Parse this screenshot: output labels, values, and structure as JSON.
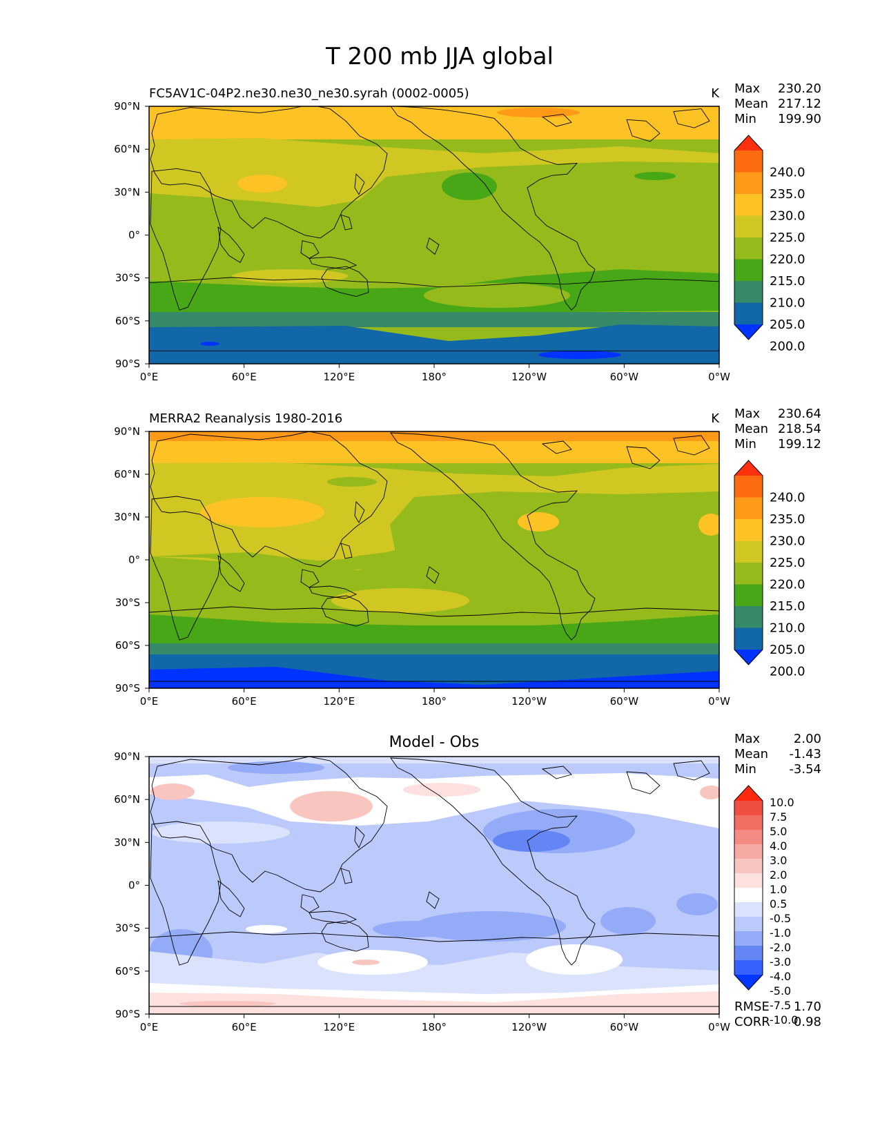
{
  "figure_title": "T 200 mb JJA global",
  "colors": {
    "levels_main": [
      "#0033ff",
      "#1167a8",
      "#368a6a",
      "#48a717",
      "#95ba1c",
      "#d0c723",
      "#fdc325",
      "#fe9a18",
      "#fd6b11",
      "#ff300e"
    ],
    "levels_diff": [
      "#0037ff",
      "#3461ff",
      "#6386f4",
      "#94abf8",
      "#bcc9fb",
      "#dbe2fc",
      "#ffffff",
      "#fde1df",
      "#f9c5c0",
      "#f7a9a3",
      "#f58c84",
      "#f26d63",
      "#ef4f3f",
      "#ff2a0e"
    ],
    "coastline": "#000000"
  },
  "chart_data": [
    {
      "type": "heatmap",
      "title": "FC5AV1C-04P2.ne30.ne30_ne30.syrah (0002-0005)",
      "units": "K",
      "stats": [
        {
          "label": "Max",
          "value": "230.20"
        },
        {
          "label": "Mean",
          "value": "217.12"
        },
        {
          "label": "Min",
          "value": "199.90"
        }
      ],
      "x_ticks": [
        "0°E",
        "60°E",
        "120°E",
        "180°",
        "120°W",
        "60°W",
        "0°W"
      ],
      "y_ticks": [
        "90°N",
        "60°N",
        "30°N",
        "0°",
        "30°S",
        "60°S",
        "90°S"
      ],
      "xlim": [
        0,
        360
      ],
      "ylim": [
        -90,
        90
      ],
      "colorbar": {
        "labels": [
          "240.0",
          "235.0",
          "230.0",
          "225.0",
          "220.0",
          "215.0",
          "210.0",
          "205.0",
          "200.0"
        ],
        "levels": [
          200,
          205,
          210,
          215,
          220,
          225,
          230,
          235,
          240
        ]
      }
    },
    {
      "type": "heatmap",
      "title": "MERRA2 Reanalysis 1980-2016",
      "units": "K",
      "stats": [
        {
          "label": "Max",
          "value": "230.64"
        },
        {
          "label": "Mean",
          "value": "218.54"
        },
        {
          "label": "Min",
          "value": "199.12"
        }
      ],
      "x_ticks": [
        "0°E",
        "60°E",
        "120°E",
        "180°",
        "120°W",
        "60°W",
        "0°W"
      ],
      "y_ticks": [
        "90°N",
        "60°N",
        "30°N",
        "0°",
        "30°S",
        "60°S",
        "90°S"
      ],
      "xlim": [
        0,
        360
      ],
      "ylim": [
        -90,
        90
      ],
      "colorbar": {
        "labels": [
          "240.0",
          "235.0",
          "230.0",
          "225.0",
          "220.0",
          "215.0",
          "210.0",
          "205.0",
          "200.0"
        ],
        "levels": [
          200,
          205,
          210,
          215,
          220,
          225,
          230,
          235,
          240
        ]
      }
    },
    {
      "type": "heatmap",
      "title": "Model - Obs",
      "units": "",
      "stats": [
        {
          "label": "Max",
          "value": "2.00"
        },
        {
          "label": "Mean",
          "value": "-1.43"
        },
        {
          "label": "Min",
          "value": "-3.54"
        }
      ],
      "footer_stats": [
        {
          "label": "RMSE",
          "value": "1.70"
        },
        {
          "label": "CORR",
          "value": "0.98"
        }
      ],
      "x_ticks": [
        "0°E",
        "60°E",
        "120°E",
        "180°",
        "120°W",
        "60°W",
        "0°W"
      ],
      "y_ticks": [
        "90°N",
        "60°N",
        "30°N",
        "0°",
        "30°S",
        "60°S",
        "90°S"
      ],
      "xlim": [
        0,
        360
      ],
      "ylim": [
        -90,
        90
      ],
      "colorbar": {
        "labels": [
          "10.0",
          "7.5",
          "5.0",
          "4.0",
          "3.0",
          "2.0",
          "1.0",
          "0.5",
          "-0.5",
          "-1.0",
          "-2.0",
          "-3.0",
          "-4.0",
          "-5.0",
          "-7.5",
          "-10.0"
        ],
        "levels": [
          -10,
          -7.5,
          -5,
          -4,
          -3,
          -2,
          -1,
          -0.5,
          0.5,
          1,
          2,
          3,
          4,
          5,
          7.5,
          10
        ]
      }
    }
  ]
}
